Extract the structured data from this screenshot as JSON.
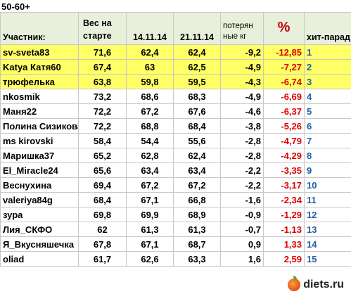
{
  "title": "50-60+",
  "headers": {
    "name": "Участник:",
    "start_line1": "Вес на",
    "start_line2": "старте",
    "date1": "14.11.14",
    "date2": "21.11.14",
    "lost_line1": "потерян",
    "lost_line2": "ные кг",
    "pct": "%",
    "rank": "хит-парад"
  },
  "rows": [
    {
      "name": "sv-sveta83",
      "start": "71,6",
      "d1": "62,4",
      "d2": "62,4",
      "lost": "-9,2",
      "pct": "-12,85",
      "rank": "1",
      "highlight": true
    },
    {
      "name": "Katya Катя60",
      "start": "67,4",
      "d1": "63",
      "d2": "62,5",
      "lost": "-4,9",
      "pct": "-7,27",
      "rank": "2",
      "highlight": true
    },
    {
      "name": "трюфелька",
      "start": "63,8",
      "d1": "59,8",
      "d2": "59,5",
      "lost": "-4,3",
      "pct": "-6,74",
      "rank": "3",
      "highlight": true
    },
    {
      "name": "nkosmik",
      "start": "73,2",
      "d1": "68,6",
      "d2": "68,3",
      "lost": "-4,9",
      "pct": "-6,69",
      "rank": "4",
      "highlight": false
    },
    {
      "name": "Маня22",
      "start": "72,2",
      "d1": "67,2",
      "d2": "67,6",
      "lost": "-4,6",
      "pct": "-6,37",
      "rank": "5",
      "highlight": false
    },
    {
      "name": "Полина Сизикова",
      "start": "72,2",
      "d1": "68,8",
      "d2": "68,4",
      "lost": "-3,8",
      "pct": "-5,26",
      "rank": "6",
      "highlight": false
    },
    {
      "name": "ms kirovski",
      "start": "58,4",
      "d1": "54,4",
      "d2": "55,6",
      "lost": "-2,8",
      "pct": "-4,79",
      "rank": "7",
      "highlight": false
    },
    {
      "name": "Маришка37",
      "start": "65,2",
      "d1": "62,8",
      "d2": "62,4",
      "lost": "-2,8",
      "pct": "-4,29",
      "rank": "8",
      "highlight": false
    },
    {
      "name": "El_Miracle24",
      "start": "65,6",
      "d1": "63,4",
      "d2": "63,4",
      "lost": "-2,2",
      "pct": "-3,35",
      "rank": "9",
      "highlight": false
    },
    {
      "name": "Веснухина",
      "start": "69,4",
      "d1": "67,2",
      "d2": "67,2",
      "lost": "-2,2",
      "pct": "-3,17",
      "rank": "10",
      "highlight": false
    },
    {
      "name": "valeriya84g",
      "start": "68,4",
      "d1": "67,1",
      "d2": "66,8",
      "lost": "-1,6",
      "pct": "-2,34",
      "rank": "11",
      "highlight": false
    },
    {
      "name": "зура",
      "start": "69,8",
      "d1": "69,9",
      "d2": "68,9",
      "lost": "-0,9",
      "pct": "-1,29",
      "rank": "12",
      "highlight": false
    },
    {
      "name": "Лия_СКФО",
      "start": "62",
      "d1": "61,3",
      "d2": "61,3",
      "lost": "-0,7",
      "pct": "-1,13",
      "rank": "13",
      "highlight": false
    },
    {
      "name": "Я_Вкусняшечка",
      "start": "67,8",
      "d1": "67,1",
      "d2": "68,7",
      "lost": "0,9",
      "pct": "1,33",
      "rank": "14",
      "highlight": false
    },
    {
      "name": "oliad",
      "start": "61,7",
      "d1": "62,6",
      "d2": "63,3",
      "lost": "1,6",
      "pct": "2,59",
      "rank": "15",
      "highlight": false
    }
  ],
  "watermark": {
    "text": "diets.ru",
    "icon": "apple-icon"
  }
}
